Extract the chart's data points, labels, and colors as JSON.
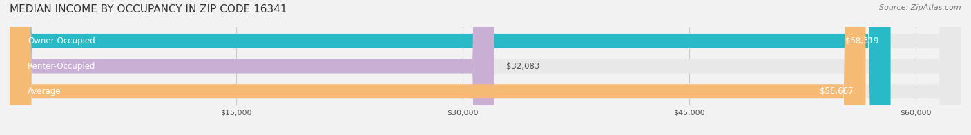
{
  "title": "MEDIAN INCOME BY OCCUPANCY IN ZIP CODE 16341",
  "source": "Source: ZipAtlas.com",
  "categories": [
    "Owner-Occupied",
    "Renter-Occupied",
    "Average"
  ],
  "values": [
    58319,
    32083,
    56667
  ],
  "bar_colors": [
    "#29b9c7",
    "#c9afd4",
    "#f5bb74"
  ],
  "label_colors": [
    "#29b9c7",
    "#c9afd4",
    "#f5bb74"
  ],
  "value_labels": [
    "$58,319",
    "$32,083",
    "$56,667"
  ],
  "xmin": 0,
  "xmax": 63000,
  "xticks": [
    15000,
    30000,
    45000,
    60000
  ],
  "xtick_labels": [
    "$15,000",
    "$30,000",
    "$45,000",
    "$60,000"
  ],
  "title_fontsize": 11,
  "source_fontsize": 8,
  "bar_label_fontsize": 8.5,
  "value_label_fontsize": 8.5,
  "background_color": "#f2f2f2",
  "bar_bg_color": "#e8e8e8",
  "bar_height": 0.55
}
